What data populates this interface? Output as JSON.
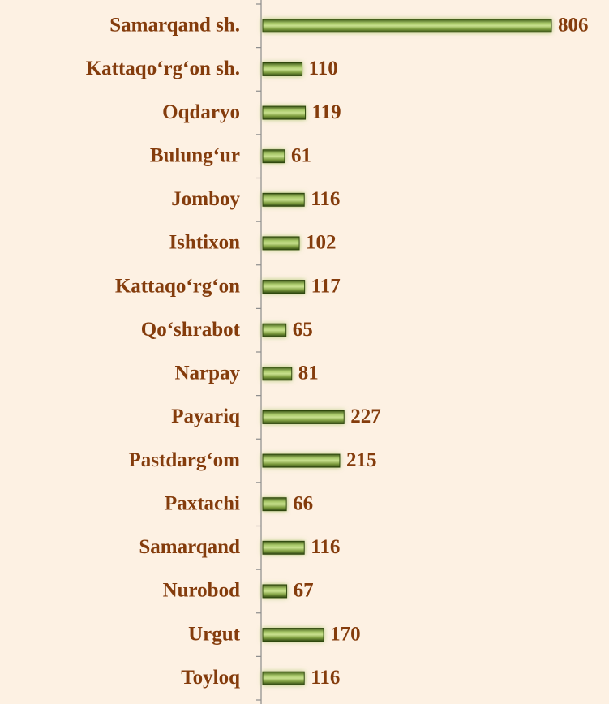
{
  "chart_data": {
    "type": "barh",
    "categories": [
      "Samarqand sh.",
      "Kattaqo‘rg‘on sh.",
      "Oqdaryo",
      "Bulung‘ur",
      "Jomboy",
      "Ishtixon",
      "Kattaqo‘rg‘on",
      "Qo‘shrabot",
      "Narpay",
      "Payariq",
      "Pastdarg‘om",
      "Paxtachi",
      "Samarqand",
      "Nurobod",
      "Urgut",
      "Toyloq"
    ],
    "values": [
      806,
      110,
      119,
      61,
      116,
      102,
      117,
      65,
      81,
      227,
      215,
      66,
      116,
      67,
      170,
      116
    ],
    "color": "#7a9a3c"
  }
}
